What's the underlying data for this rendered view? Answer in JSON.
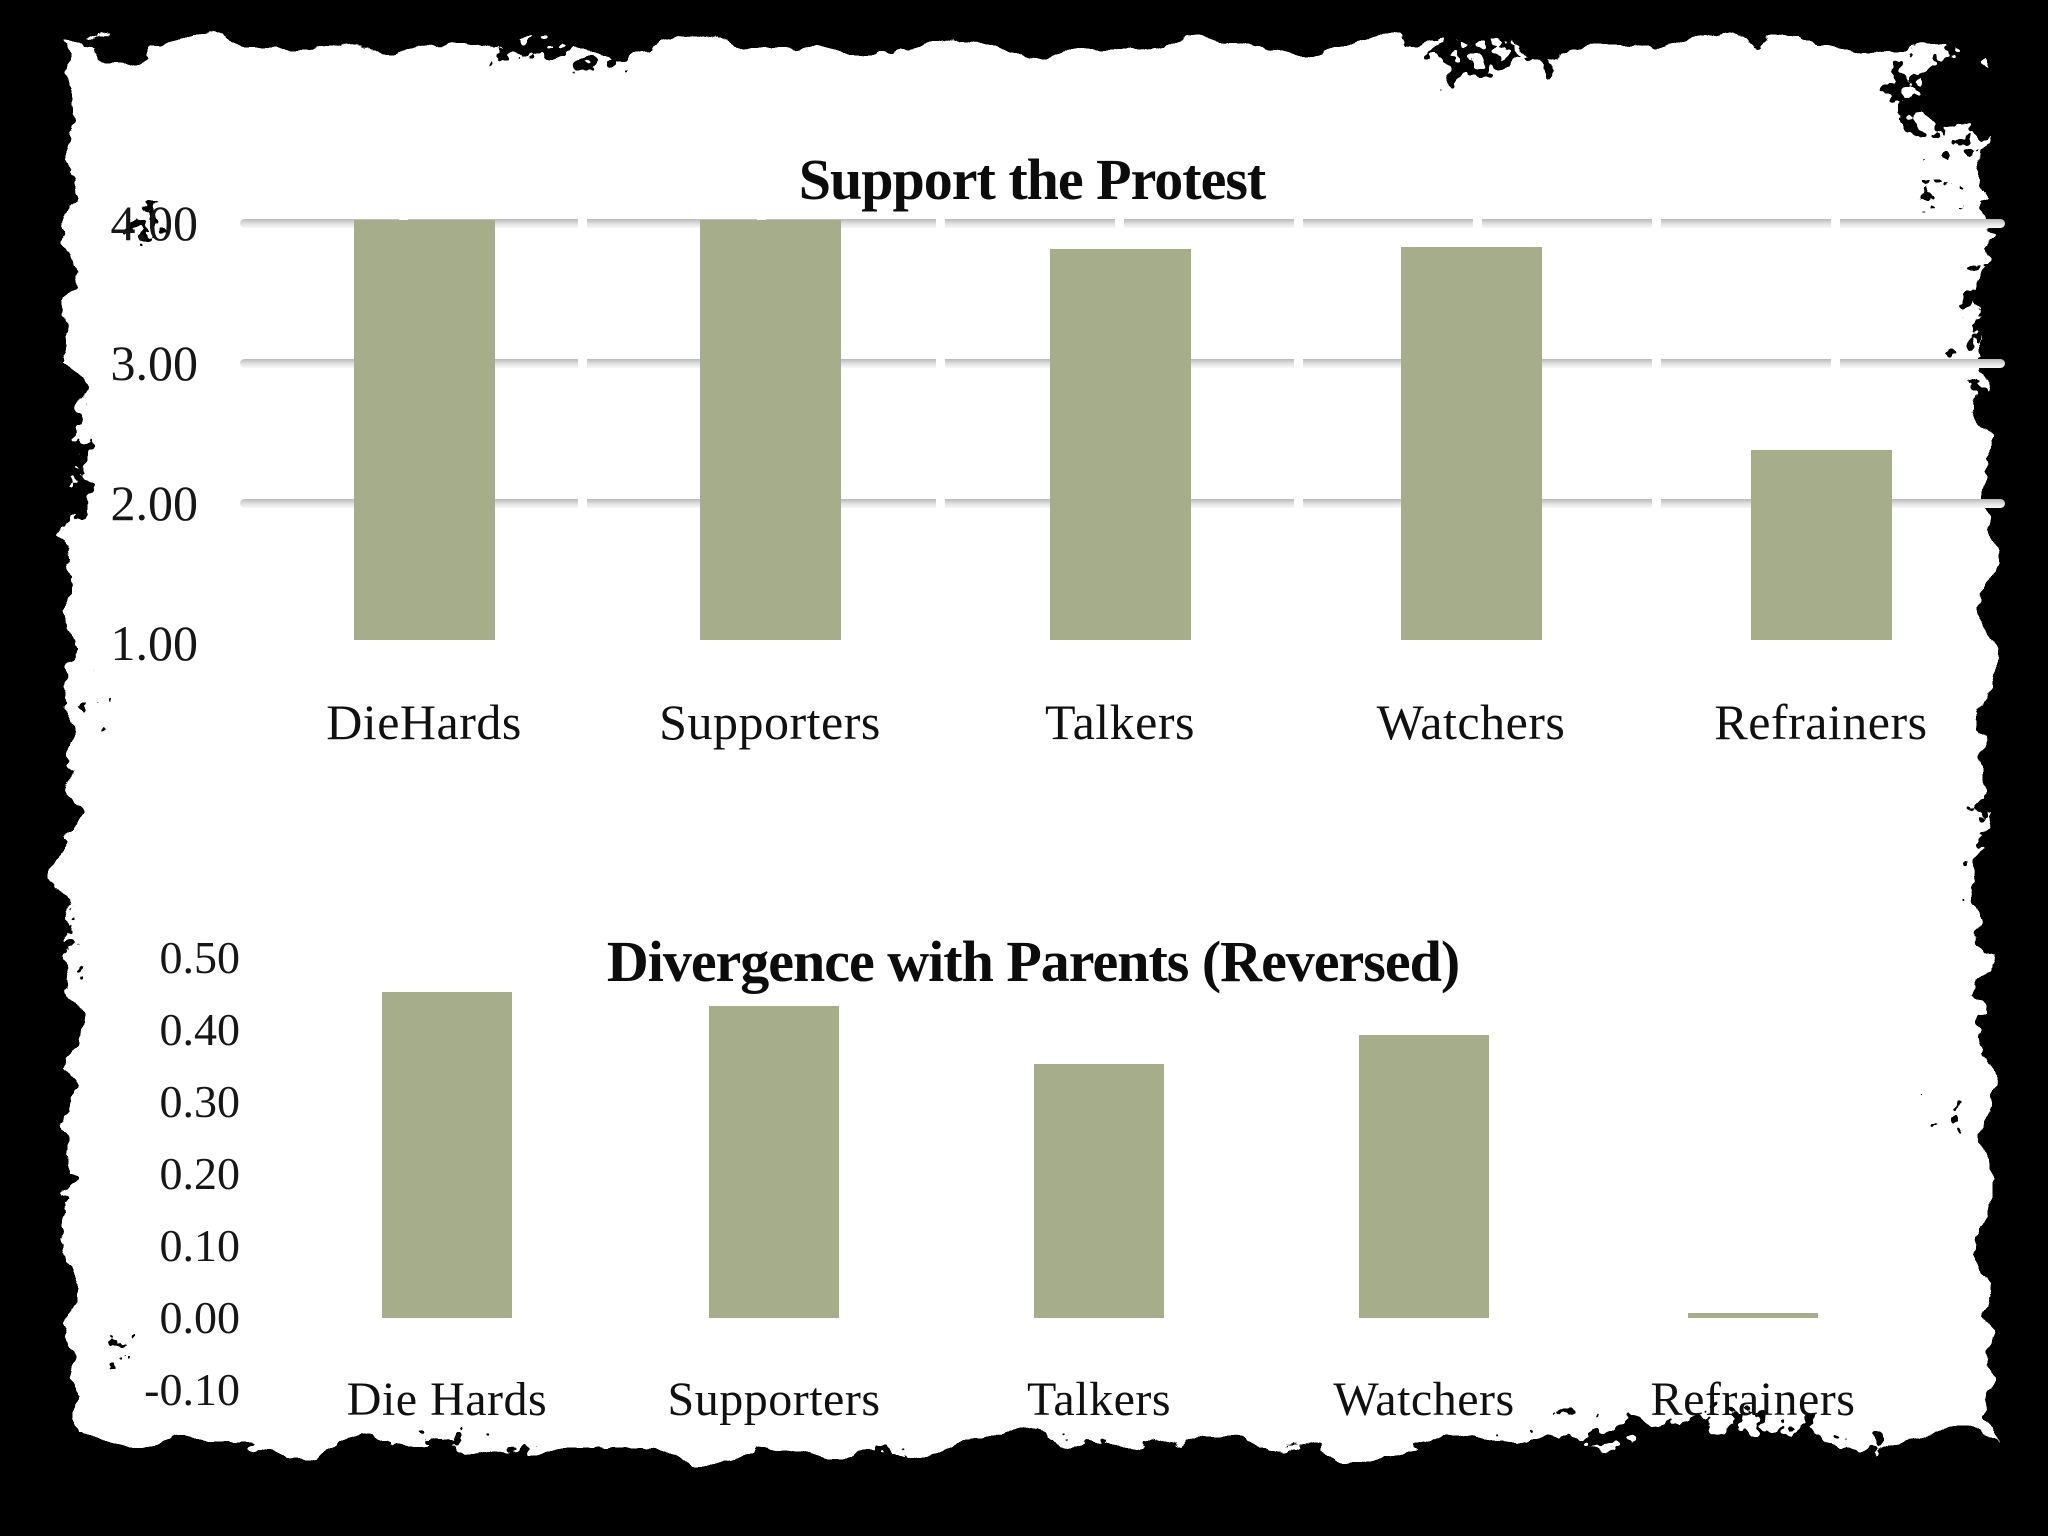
{
  "slide": {
    "background": "#ffffff",
    "frame_color": "#000000"
  },
  "colors": {
    "bar": "#a5ad8b",
    "text": "#111111",
    "background": "#ffffff",
    "frame": "#000000",
    "gridline": "#c9c9c9"
  },
  "chart_data": [
    {
      "type": "bar",
      "title": "Support the Protest",
      "categories": [
        "DieHards",
        "Supporters",
        "Talkers",
        "Watchers",
        "Refrainers"
      ],
      "values": [
        4.0,
        4.0,
        3.79,
        3.81,
        2.36
      ],
      "xlabel": "",
      "ylabel": "",
      "ylim": [
        1.0,
        4.0
      ],
      "y_ticks": [
        "4.00",
        "3.00",
        "2.00",
        "1.00"
      ],
      "grid": true,
      "legend": false,
      "bar_color": "#a5ad8b",
      "gridline_color": "#c9c9c9"
    },
    {
      "type": "bar",
      "title": "Divergence with Parents (Reversed)",
      "categories": [
        "Die Hards",
        "Supporters",
        "Talkers",
        "Watchers",
        "Refrainers"
      ],
      "values": [
        0.45,
        0.43,
        0.35,
        0.39,
        0.0
      ],
      "xlabel": "",
      "ylabel": "",
      "ylim": [
        -0.1,
        0.5
      ],
      "y_ticks": [
        "0.50",
        "0.40",
        "0.30",
        "0.20",
        "0.10",
        "0.00",
        "-0.10"
      ],
      "grid": false,
      "legend": false,
      "bar_color": "#a5ad8b"
    }
  ]
}
